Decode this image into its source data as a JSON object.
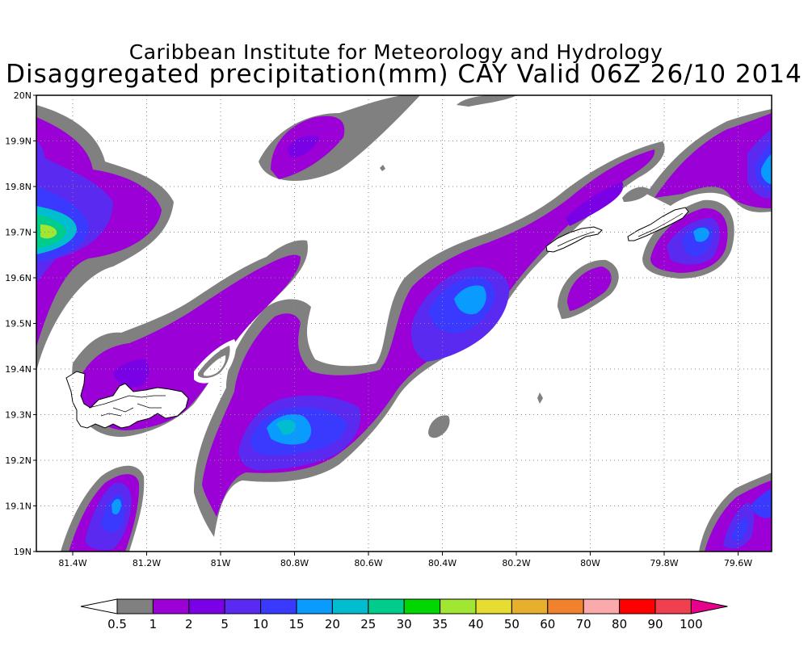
{
  "title": {
    "line1": "Caribbean Institute for Meteorology and Hydrology",
    "line2": "Disaggregated precipitation(mm) CAY Valid 06Z 26/10 2014"
  },
  "map": {
    "lat_labels": [
      "20N",
      "19.9N",
      "19.8N",
      "19.7N",
      "19.6N",
      "19.5N",
      "19.4N",
      "19.3N",
      "19.2N",
      "19.1N",
      "19N"
    ],
    "lon_labels": [
      "81.4W",
      "81.2W",
      "81W",
      "80.8W",
      "80.6W",
      "80.4W",
      "80.2W",
      "80W",
      "79.8W",
      "79.6W"
    ],
    "grid": "dotted",
    "islands": [
      "grand-cayman",
      "little-cayman",
      "cayman-brac"
    ]
  },
  "legend": {
    "labels": [
      "0.5",
      "1",
      "2",
      "5",
      "10",
      "15",
      "20",
      "25",
      "30",
      "35",
      "40",
      "50",
      "60",
      "70",
      "80",
      "90",
      "100"
    ],
    "colors": [
      "#ffffff",
      "#808080",
      "#9b00d6",
      "#7a00e6",
      "#5a2af0",
      "#3a3aff",
      "#0a9bff",
      "#00bdd0",
      "#00cc8c",
      "#00d600",
      "#a0e632",
      "#e6dc32",
      "#e6af2d",
      "#f0822d",
      "#faaaaa",
      "#ff0000",
      "#f04050",
      "#e6008c"
    ]
  }
}
